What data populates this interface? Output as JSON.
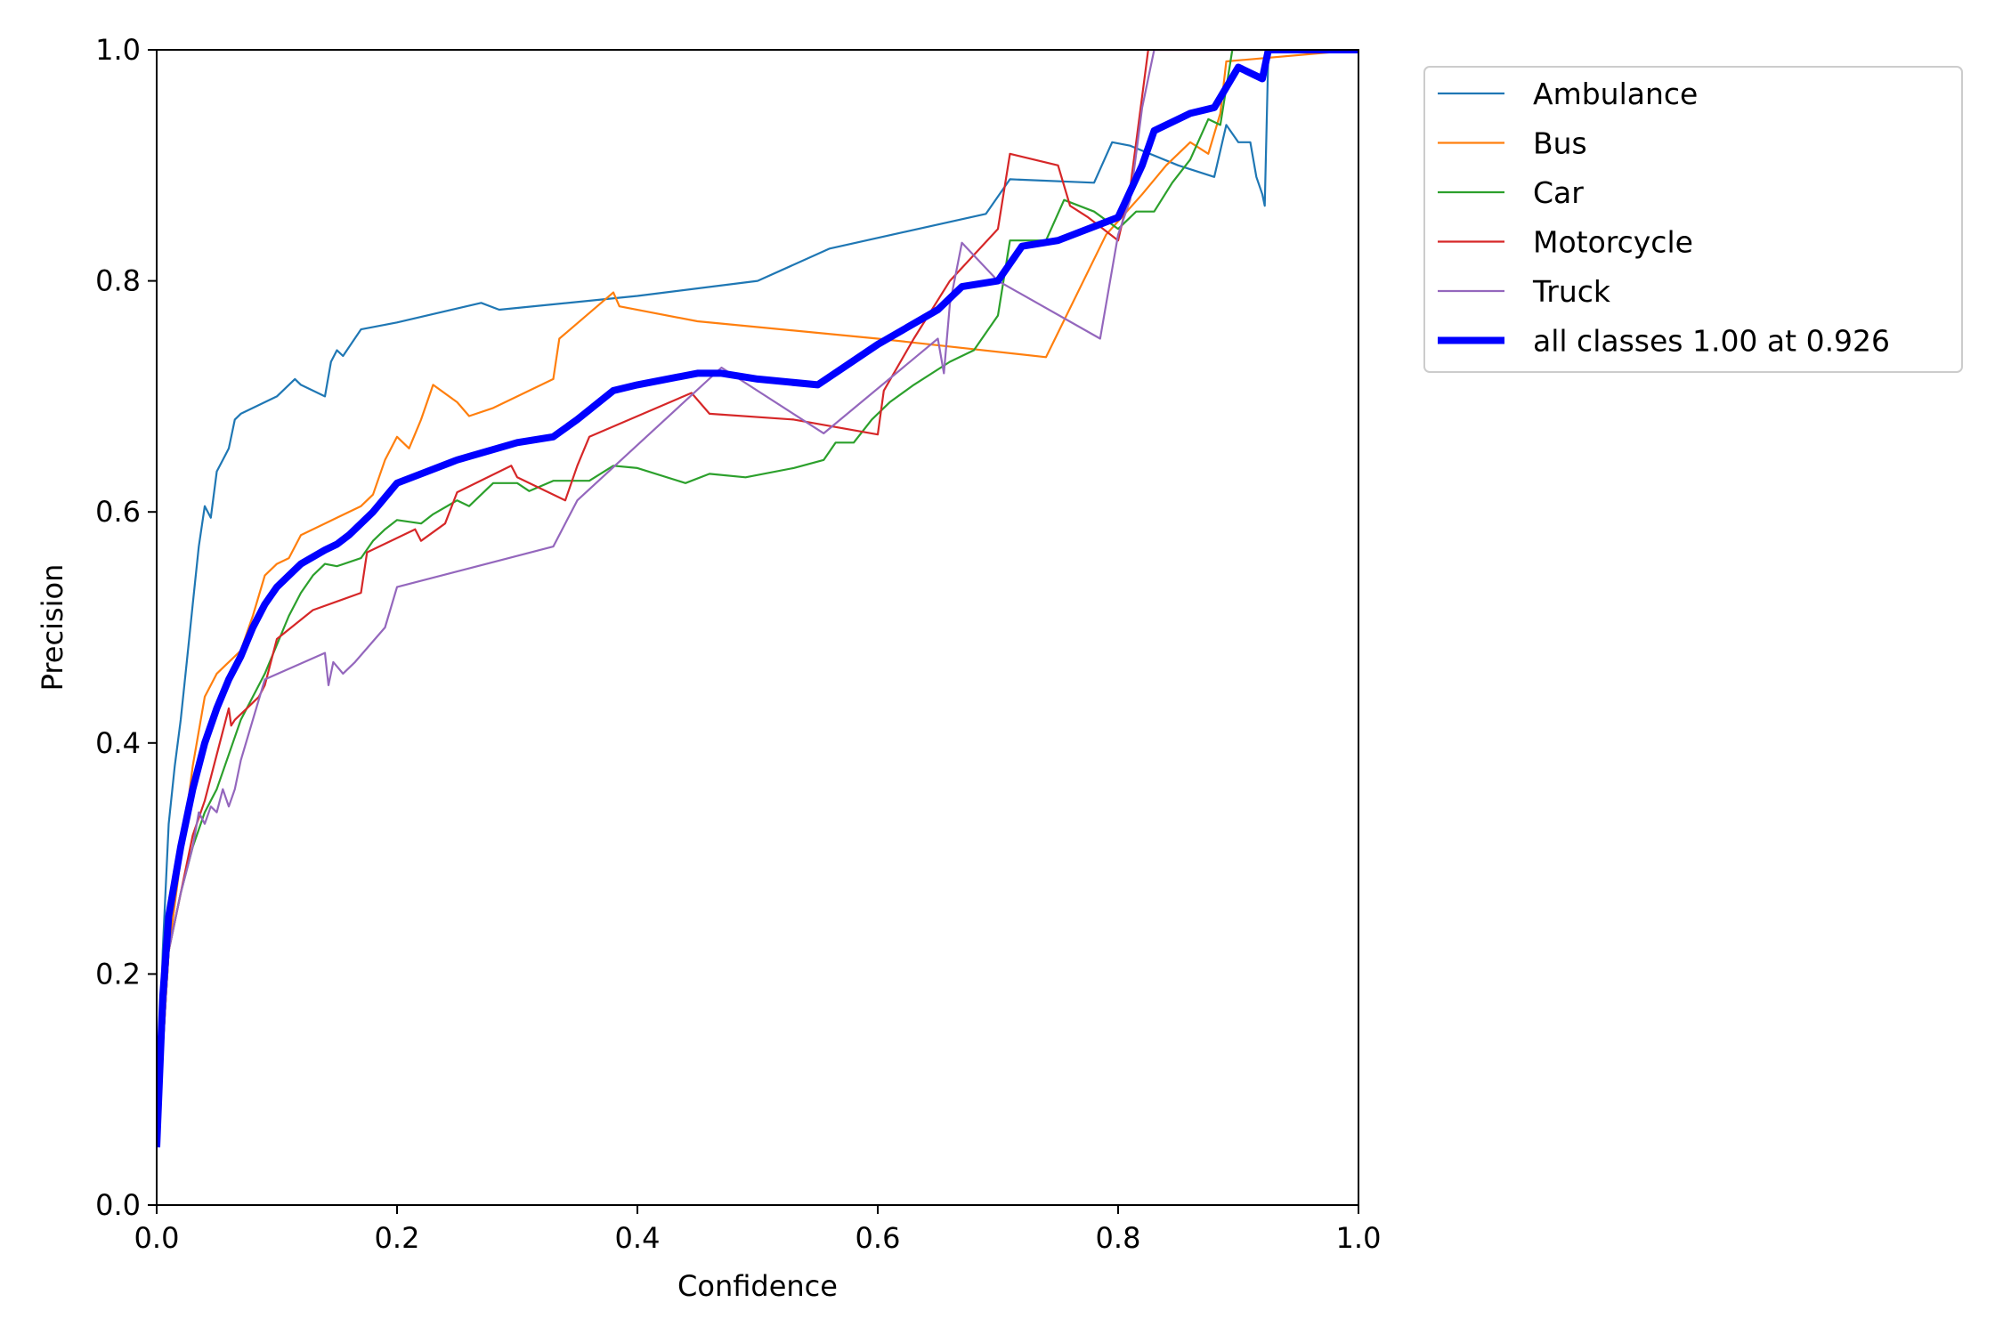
{
  "chart_data": {
    "type": "line",
    "title": "",
    "xlabel": "Confidence",
    "ylabel": "Precision",
    "xlim": [
      0,
      1
    ],
    "ylim": [
      0,
      1
    ],
    "xticks": [
      "0.0",
      "0.2",
      "0.4",
      "0.6",
      "0.8",
      "1.0"
    ],
    "yticks": [
      "0.0",
      "0.2",
      "0.4",
      "0.6",
      "0.8",
      "1.0"
    ],
    "grid": false,
    "legend_position": "outside-top-right",
    "series": [
      {
        "name": "Ambulance",
        "color": "#1f77b4",
        "x": [
          0.0,
          0.005,
          0.01,
          0.015,
          0.02,
          0.025,
          0.03,
          0.035,
          0.04,
          0.045,
          0.05,
          0.055,
          0.06,
          0.065,
          0.07,
          0.08,
          0.1,
          0.115,
          0.12,
          0.14,
          0.145,
          0.15,
          0.155,
          0.17,
          0.2,
          0.27,
          0.285,
          0.4,
          0.5,
          0.56,
          0.69,
          0.71,
          0.78,
          0.795,
          0.81,
          0.85,
          0.88,
          0.89,
          0.9,
          0.91,
          0.915,
          0.92,
          0.922,
          0.925,
          1.0
        ],
        "y": [
          0.05,
          0.22,
          0.33,
          0.38,
          0.42,
          0.47,
          0.52,
          0.57,
          0.605,
          0.595,
          0.635,
          0.645,
          0.655,
          0.68,
          0.685,
          0.69,
          0.7,
          0.715,
          0.71,
          0.7,
          0.73,
          0.74,
          0.735,
          0.758,
          0.764,
          0.781,
          0.775,
          0.787,
          0.8,
          0.828,
          0.858,
          0.888,
          0.885,
          0.92,
          0.917,
          0.9,
          0.89,
          0.935,
          0.92,
          0.92,
          0.89,
          0.875,
          0.865,
          1.0,
          1.0
        ]
      },
      {
        "name": "Bus",
        "color": "#ff7f0e",
        "x": [
          0.0,
          0.01,
          0.02,
          0.03,
          0.04,
          0.05,
          0.06,
          0.07,
          0.08,
          0.09,
          0.1,
          0.11,
          0.12,
          0.14,
          0.17,
          0.18,
          0.19,
          0.2,
          0.21,
          0.22,
          0.23,
          0.25,
          0.26,
          0.28,
          0.33,
          0.335,
          0.38,
          0.385,
          0.45,
          0.6,
          0.74,
          0.79,
          0.82,
          0.84,
          0.86,
          0.875,
          0.885,
          0.89,
          1.0
        ],
        "y": [
          0.05,
          0.22,
          0.3,
          0.38,
          0.44,
          0.46,
          0.47,
          0.48,
          0.51,
          0.545,
          0.555,
          0.56,
          0.58,
          0.59,
          0.605,
          0.615,
          0.645,
          0.665,
          0.655,
          0.68,
          0.71,
          0.695,
          0.683,
          0.69,
          0.715,
          0.75,
          0.79,
          0.778,
          0.765,
          0.75,
          0.734,
          0.84,
          0.875,
          0.9,
          0.92,
          0.91,
          0.945,
          0.99,
          1.0
        ]
      },
      {
        "name": "Car",
        "color": "#2ca02c",
        "x": [
          0.0,
          0.01,
          0.02,
          0.03,
          0.04,
          0.05,
          0.06,
          0.07,
          0.08,
          0.09,
          0.1,
          0.11,
          0.12,
          0.13,
          0.14,
          0.15,
          0.17,
          0.18,
          0.19,
          0.2,
          0.22,
          0.23,
          0.25,
          0.26,
          0.28,
          0.3,
          0.31,
          0.33,
          0.36,
          0.38,
          0.4,
          0.44,
          0.46,
          0.49,
          0.53,
          0.555,
          0.565,
          0.58,
          0.595,
          0.61,
          0.63,
          0.66,
          0.68,
          0.7,
          0.71,
          0.74,
          0.755,
          0.78,
          0.8,
          0.815,
          0.83,
          0.845,
          0.86,
          0.875,
          0.885,
          0.895,
          1.0
        ],
        "y": [
          0.05,
          0.22,
          0.27,
          0.31,
          0.34,
          0.36,
          0.39,
          0.42,
          0.44,
          0.46,
          0.485,
          0.51,
          0.53,
          0.545,
          0.555,
          0.553,
          0.56,
          0.575,
          0.585,
          0.593,
          0.59,
          0.598,
          0.61,
          0.605,
          0.625,
          0.625,
          0.618,
          0.627,
          0.627,
          0.64,
          0.638,
          0.625,
          0.633,
          0.63,
          0.638,
          0.645,
          0.66,
          0.66,
          0.68,
          0.695,
          0.71,
          0.73,
          0.74,
          0.77,
          0.835,
          0.835,
          0.87,
          0.86,
          0.845,
          0.86,
          0.86,
          0.885,
          0.905,
          0.94,
          0.935,
          1.0,
          1.0
        ]
      },
      {
        "name": "Motorcycle",
        "color": "#d62728",
        "x": [
          0.0,
          0.01,
          0.02,
          0.03,
          0.04,
          0.05,
          0.06,
          0.062,
          0.065,
          0.075,
          0.085,
          0.09,
          0.1,
          0.13,
          0.17,
          0.175,
          0.215,
          0.22,
          0.24,
          0.25,
          0.295,
          0.3,
          0.34,
          0.35,
          0.36,
          0.445,
          0.46,
          0.53,
          0.6,
          0.605,
          0.63,
          0.66,
          0.7,
          0.71,
          0.75,
          0.76,
          0.775,
          0.8,
          0.81,
          0.825,
          1.0
        ],
        "y": [
          0.05,
          0.22,
          0.27,
          0.32,
          0.35,
          0.39,
          0.43,
          0.415,
          0.42,
          0.43,
          0.44,
          0.45,
          0.49,
          0.515,
          0.53,
          0.565,
          0.585,
          0.575,
          0.59,
          0.617,
          0.64,
          0.63,
          0.61,
          0.64,
          0.665,
          0.703,
          0.685,
          0.68,
          0.667,
          0.705,
          0.75,
          0.8,
          0.845,
          0.91,
          0.9,
          0.865,
          0.855,
          0.835,
          0.88,
          1.0,
          1.0
        ]
      },
      {
        "name": "Truck",
        "color": "#9467bd",
        "x": [
          0.0,
          0.01,
          0.02,
          0.03,
          0.035,
          0.04,
          0.045,
          0.05,
          0.055,
          0.06,
          0.065,
          0.07,
          0.08,
          0.09,
          0.14,
          0.143,
          0.147,
          0.155,
          0.165,
          0.19,
          0.2,
          0.33,
          0.35,
          0.47,
          0.555,
          0.65,
          0.655,
          0.66,
          0.67,
          0.7,
          0.785,
          0.8,
          0.81,
          0.82,
          0.83,
          1.0
        ],
        "y": [
          0.05,
          0.22,
          0.27,
          0.31,
          0.34,
          0.33,
          0.345,
          0.34,
          0.36,
          0.345,
          0.36,
          0.385,
          0.42,
          0.455,
          0.478,
          0.45,
          0.47,
          0.46,
          0.47,
          0.5,
          0.535,
          0.57,
          0.61,
          0.725,
          0.668,
          0.75,
          0.72,
          0.78,
          0.833,
          0.8,
          0.75,
          0.84,
          0.87,
          0.95,
          1.0,
          1.0
        ]
      },
      {
        "name": "all classes 1.00 at 0.926",
        "color": "#0000ff",
        "thick": true,
        "x": [
          0.0,
          0.005,
          0.01,
          0.02,
          0.03,
          0.04,
          0.05,
          0.06,
          0.07,
          0.08,
          0.09,
          0.1,
          0.12,
          0.14,
          0.15,
          0.16,
          0.18,
          0.2,
          0.25,
          0.3,
          0.33,
          0.35,
          0.38,
          0.4,
          0.45,
          0.47,
          0.5,
          0.55,
          0.6,
          0.65,
          0.67,
          0.7,
          0.72,
          0.75,
          0.8,
          0.82,
          0.83,
          0.86,
          0.88,
          0.9,
          0.92,
          0.925,
          1.0
        ],
        "y": [
          0.05,
          0.18,
          0.25,
          0.31,
          0.36,
          0.4,
          0.43,
          0.455,
          0.475,
          0.5,
          0.52,
          0.535,
          0.555,
          0.567,
          0.572,
          0.58,
          0.6,
          0.625,
          0.645,
          0.66,
          0.665,
          0.68,
          0.705,
          0.71,
          0.72,
          0.72,
          0.715,
          0.71,
          0.745,
          0.775,
          0.795,
          0.8,
          0.83,
          0.835,
          0.855,
          0.9,
          0.93,
          0.945,
          0.95,
          0.985,
          0.975,
          1.0,
          1.0
        ]
      }
    ]
  }
}
